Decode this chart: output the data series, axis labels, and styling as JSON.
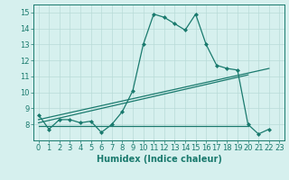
{
  "x": [
    0,
    1,
    2,
    3,
    4,
    5,
    6,
    7,
    8,
    9,
    10,
    11,
    12,
    13,
    14,
    15,
    16,
    17,
    18,
    19,
    20,
    21,
    22,
    23
  ],
  "line1": [
    8.6,
    7.7,
    8.3,
    8.3,
    8.1,
    8.2,
    7.5,
    8.0,
    8.8,
    10.1,
    13.0,
    14.9,
    14.7,
    14.3,
    13.9,
    14.9,
    13.0,
    11.7,
    11.5,
    11.4,
    8.0,
    7.4,
    7.7,
    null
  ],
  "line2_x": [
    0,
    20
  ],
  "line2_y": [
    7.9,
    7.9
  ],
  "line3_x": [
    0,
    22
  ],
  "line3_y": [
    8.3,
    11.5
  ],
  "line4_x": [
    0,
    20
  ],
  "line4_y": [
    8.1,
    11.1
  ],
  "color": "#1a7a6e",
  "bg_color": "#d6f0ee",
  "grid_color": "#b8dbd8",
  "xlim": [
    -0.5,
    23.5
  ],
  "ylim": [
    7.0,
    15.5
  ],
  "yticks": [
    8,
    9,
    10,
    11,
    12,
    13,
    14,
    15
  ],
  "xticks": [
    0,
    1,
    2,
    3,
    4,
    5,
    6,
    7,
    8,
    9,
    10,
    11,
    12,
    13,
    14,
    15,
    16,
    17,
    18,
    19,
    20,
    21,
    22,
    23
  ],
  "xlabel": "Humidex (Indice chaleur)",
  "xlabel_fontsize": 7,
  "tick_fontsize": 6,
  "marker": "D",
  "markersize": 2.0,
  "linewidth": 0.9
}
